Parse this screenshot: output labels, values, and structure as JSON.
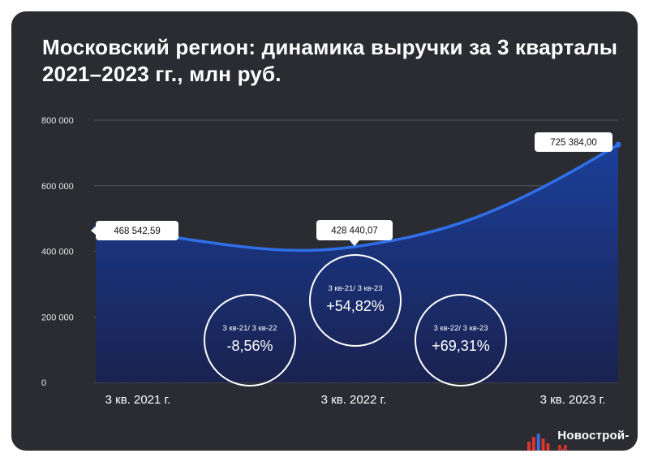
{
  "title_lines": [
    "Московский регион: динамика выручки за 3 кварталы",
    "2021–2023 гг., млн руб."
  ],
  "chart_data": {
    "type": "area",
    "categories": [
      "3 кв. 2021 г.",
      "3 кв. 2022 г.",
      "3 кв. 2023 г."
    ],
    "values": [
      468542.59,
      428440.07,
      725384.0
    ],
    "data_labels": [
      "468 542,59",
      "428 440,07",
      "725 384,00"
    ],
    "ylim": [
      0,
      800000
    ],
    "yticks": [
      0,
      200000,
      400000,
      600000,
      800000
    ],
    "ytick_labels": [
      "0",
      "200 000",
      "400 000",
      "600 000",
      "800 000"
    ],
    "grid": true,
    "colors": {
      "line": "#2f6fe8",
      "area_top": "#1b3f9a",
      "area_bottom": "#1a2250",
      "background": "#2b2c31"
    },
    "annotations": [
      {
        "label": "3 кв-21/ 3 кв-22",
        "value": "-8,56%"
      },
      {
        "label": "3 кв-21/ 3 кв-23",
        "value": "+54,82%"
      },
      {
        "label": "3 кв-22/ 3 кв-23",
        "value": "+69,31%"
      }
    ]
  },
  "brand": {
    "name": "Новострой-",
    "accent": "М",
    "icon": "building-bars-icon"
  }
}
